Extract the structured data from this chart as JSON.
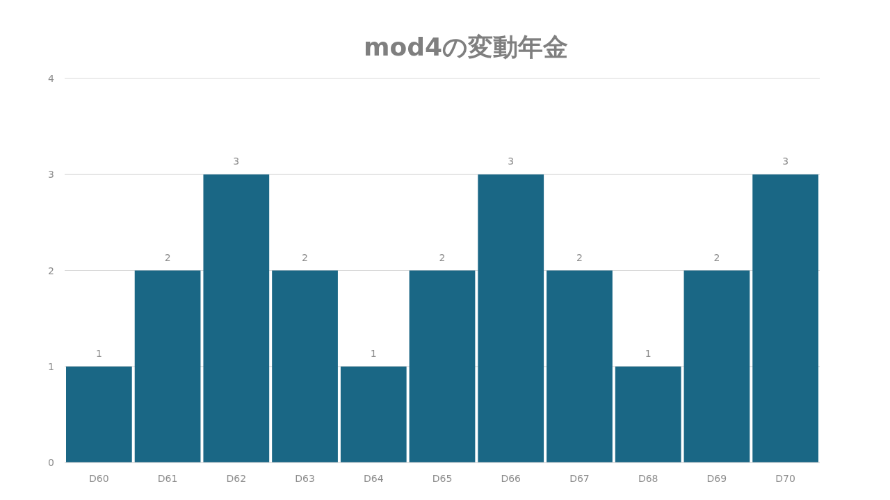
{
  "chart_data": {
    "type": "bar",
    "title": "mod4の変動年金",
    "categories": [
      "D60",
      "D61",
      "D62",
      "D63",
      "D64",
      "D65",
      "D66",
      "D67",
      "D68",
      "D69",
      "D70"
    ],
    "values": [
      1,
      2,
      3,
      2,
      1,
      2,
      3,
      2,
      1,
      2,
      3
    ],
    "color": "#1a6785",
    "ylim": [
      0,
      4
    ],
    "yticks": [
      0,
      1,
      2,
      3,
      4
    ],
    "grid": "y",
    "data_labels": true
  }
}
